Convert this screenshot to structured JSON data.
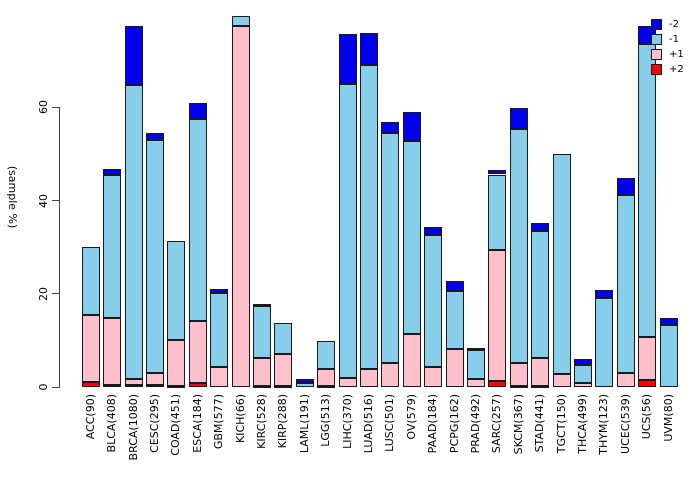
{
  "chart_data": {
    "type": "bar",
    "stacked": true,
    "title": "",
    "xlabel": "",
    "ylabel": "(sample %)",
    "ylim": [
      0,
      80
    ],
    "yticks": [
      0,
      20,
      40,
      60
    ],
    "axis_max_drawn": 60,
    "grid": false,
    "legend_position": "top-right",
    "categories": [
      "ACC(90)",
      "BLCA(408)",
      "BRCA(1080)",
      "CESC(295)",
      "COAD(451)",
      "ESCA(184)",
      "GBM(577)",
      "KICH(66)",
      "KIRC(528)",
      "KIRP(288)",
      "LAML(191)",
      "LGG(513)",
      "LIHC(370)",
      "LUAD(516)",
      "LUSC(501)",
      "OV(579)",
      "PAAD(184)",
      "PCPG(162)",
      "PRAD(492)",
      "SARC(257)",
      "SKCM(367)",
      "STAD(441)",
      "TGCT(150)",
      "THCA(499)",
      "THYM(123)",
      "UCEC(539)",
      "UCS(56)",
      "UVM(80)"
    ],
    "series": [
      {
        "name": "+2",
        "color": "#FF0000",
        "values": [
          1.1,
          0.5,
          0.4,
          0.5,
          0.3,
          0.9,
          0,
          0,
          0.3,
          0.3,
          0,
          0.3,
          0,
          0,
          0,
          0,
          0,
          0,
          0,
          1.2,
          0.3,
          0.3,
          0,
          0,
          0,
          0,
          1.5,
          0
        ]
      },
      {
        "name": "+1",
        "color": "#FFC0CB",
        "values": [
          14.4,
          14.3,
          1.4,
          2.4,
          9.8,
          13.2,
          4.3,
          77.4,
          5.9,
          6.8,
          0,
          3.6,
          1.9,
          3.9,
          5.2,
          11.4,
          4.2,
          8.2,
          1.7,
          28.2,
          4.9,
          5.9,
          2.8,
          0.9,
          0,
          3.0,
          9.2,
          0
        ]
      },
      {
        "name": "-1",
        "color": "#87CEEB",
        "values": [
          14.5,
          30.6,
          62.9,
          50.2,
          21.2,
          43.4,
          15.8,
          2.2,
          11.1,
          6.7,
          0.9,
          5.9,
          63.2,
          65.1,
          49.4,
          41.3,
          28.5,
          12.4,
          6.2,
          16.2,
          50.1,
          27.3,
          47.3,
          3.9,
          19.1,
          38.3,
          62.8,
          13.4
        ]
      },
      {
        "name": "-2",
        "color": "#0000EE",
        "values": [
          0,
          1.3,
          12.8,
          1.5,
          0,
          3.5,
          0.9,
          0,
          0.5,
          0,
          0.9,
          0,
          10.6,
          6.9,
          2.2,
          6.4,
          1.7,
          2.2,
          0.5,
          0.9,
          4.6,
          1.6,
          0,
          1.3,
          1.8,
          3.6,
          3.9,
          1.4
        ]
      }
    ],
    "legend": [
      {
        "label": "-2",
        "color": "#0000EE"
      },
      {
        "label": "-1",
        "color": "#87CEEB"
      },
      {
        "label": "+1",
        "color": "#FFC0CB"
      },
      {
        "label": "+2",
        "color": "#FF0000"
      }
    ]
  }
}
